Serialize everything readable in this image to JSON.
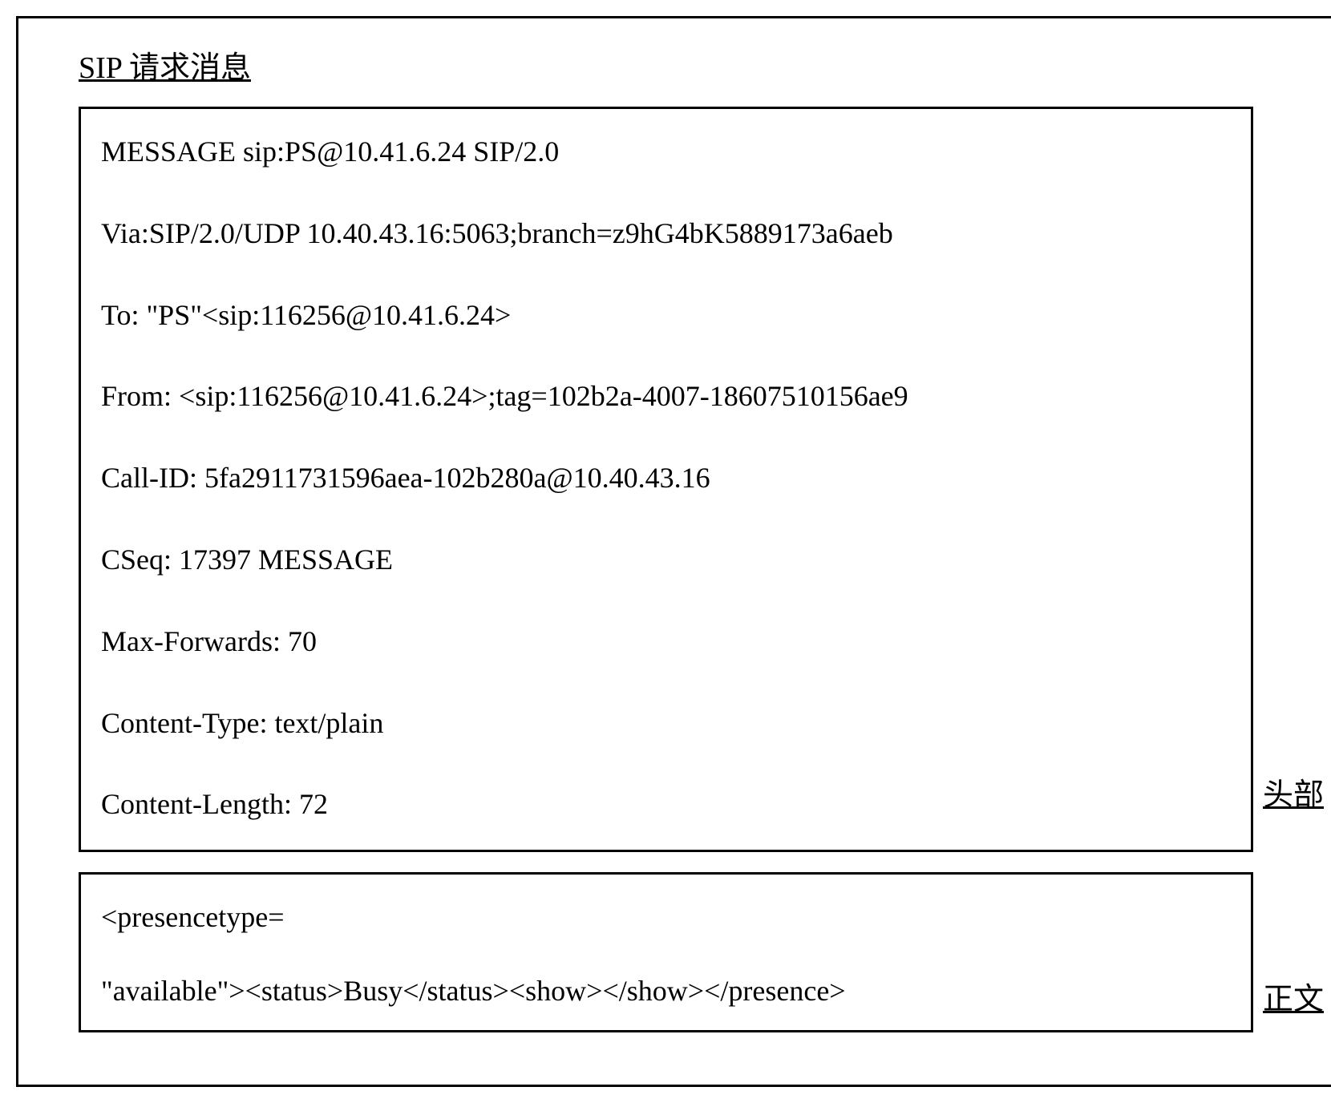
{
  "title": "SIP 请求消息",
  "header": {
    "label": "头部",
    "lines": [
      "MESSAGE sip:PS@10.41.6.24 SIP/2.0",
      "Via:SIP/2.0/UDP 10.40.43.16:5063;branch=z9hG4bK5889173a6aeb",
      "To: \"PS\"<sip:116256@10.41.6.24>",
      "From: <sip:116256@10.41.6.24>;tag=102b2a-4007-18607510156ae9",
      "Call-ID: 5fa2911731596aea-102b280a@10.40.43.16",
      "CSeq: 17397 MESSAGE",
      "Max-Forwards: 70",
      "Content-Type: text/plain",
      "Content-Length: 72"
    ]
  },
  "body": {
    "label": "正文",
    "lines": [
      "<presencetype=",
      "\"available\"><status>Busy</status><show></show></presence>"
    ]
  },
  "colors": {
    "border": "#000000",
    "background": "#ffffff",
    "text": "#000000"
  },
  "typography": {
    "font_family": "Times New Roman, serif",
    "title_fontsize": 38,
    "content_fontsize": 36,
    "label_fontsize": 38
  }
}
